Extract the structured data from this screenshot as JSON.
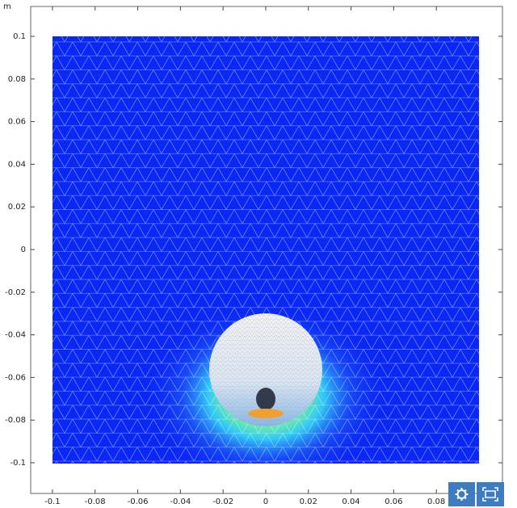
{
  "chart_data": {
    "type": "mesh",
    "ylabel": "m",
    "xlim": [
      -0.1102,
      0.111
    ],
    "ylim": [
      -0.1144,
      0.114
    ],
    "xticks": [
      -0.1,
      -0.08,
      -0.06,
      -0.04,
      -0.02,
      0,
      0.02,
      0.04,
      0.06,
      0.08
    ],
    "yticks": [
      -0.1,
      -0.08,
      -0.06,
      -0.04,
      -0.02,
      0,
      0.02,
      0.04,
      0.06,
      0.08,
      0.1
    ],
    "grid": false
  }
}
